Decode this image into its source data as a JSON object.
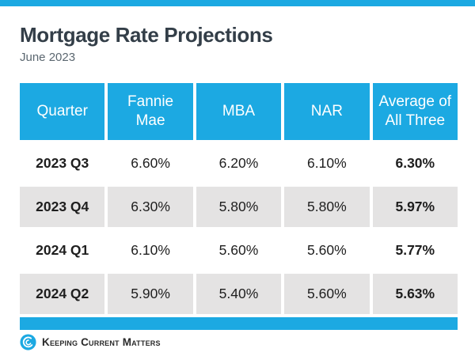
{
  "page": {
    "title": "Mortgage Rate Projections",
    "subtitle": "June 2023"
  },
  "colors": {
    "accent_blue": "#1CA9E2",
    "row_alt_gray": "#E4E3E3",
    "title_dark": "#333E48",
    "subtitle_gray": "#5B6770"
  },
  "table": {
    "columns": [
      "Quarter",
      "Fannie Mae",
      "MBA",
      "NAR",
      "Average of All Three"
    ],
    "rows": [
      [
        "2023 Q3",
        "6.60%",
        "6.20%",
        "6.10%",
        "6.30%"
      ],
      [
        "2023 Q4",
        "6.30%",
        "5.80%",
        "5.80%",
        "5.97%"
      ],
      [
        "2024 Q1",
        "6.10%",
        "5.60%",
        "5.60%",
        "5.77%"
      ],
      [
        "2024 Q2",
        "5.90%",
        "5.40%",
        "5.60%",
        "5.63%"
      ]
    ]
  },
  "footer": {
    "brand": "Keeping Current Matters",
    "logo_icon": "kcm-swirl-icon"
  },
  "chart_data": {
    "type": "table",
    "title": "Mortgage Rate Projections",
    "subtitle": "June 2023",
    "columns": [
      "Quarter",
      "Fannie Mae",
      "MBA",
      "NAR",
      "Average of All Three"
    ],
    "rows": [
      [
        "2023 Q3",
        "6.60%",
        "6.20%",
        "6.10%",
        "6.30%"
      ],
      [
        "2023 Q4",
        "6.30%",
        "5.80%",
        "5.80%",
        "5.97%"
      ],
      [
        "2024 Q1",
        "6.10%",
        "5.60%",
        "5.60%",
        "5.77%"
      ],
      [
        "2024 Q2",
        "5.90%",
        "5.40%",
        "5.60%",
        "5.63%"
      ]
    ],
    "units": "percent",
    "source_brand": "Keeping Current Matters"
  }
}
